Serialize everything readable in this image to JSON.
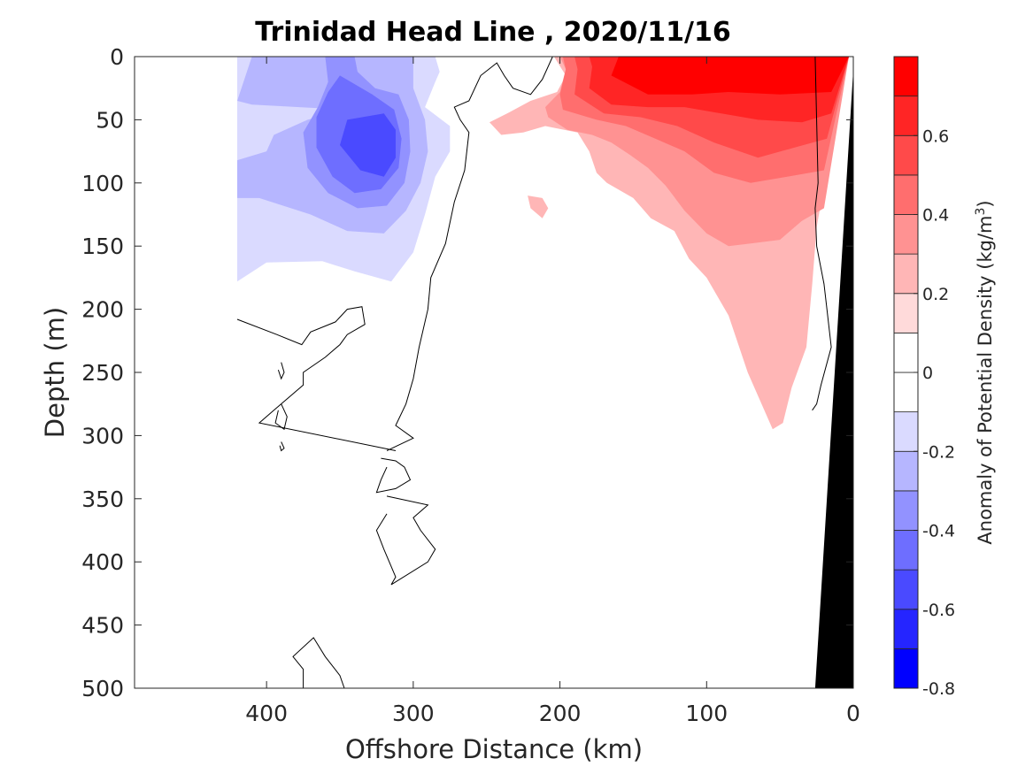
{
  "chart_data": {
    "type": "heatmap",
    "subtype": "filled-contour",
    "title": "Trinidad Head Line , 2020/11/16",
    "xlabel": "Offshore Distance (km)",
    "ylabel": "Depth (m)",
    "xlim": [
      490,
      0
    ],
    "xaxis_reversed": true,
    "ylim": [
      0,
      500
    ],
    "yaxis_reversed": true,
    "xticks": [
      400,
      300,
      200,
      100,
      0
    ],
    "yticks": [
      0,
      50,
      100,
      150,
      200,
      250,
      300,
      350,
      400,
      450,
      500
    ],
    "colorbar": {
      "label": "Anomaly of Potential Density (kg/m³)",
      "label_main": "Anomaly of Potential Density (kg/m",
      "label_sup": "3",
      "label_close": ")",
      "range": [
        -0.8,
        0.8
      ],
      "ticks": [
        -0.8,
        -0.6,
        -0.4,
        -0.2,
        0,
        0.2,
        0.4,
        0.6
      ],
      "tick_labels": [
        "-0.8",
        "-0.6",
        "-0.4",
        "-0.2",
        "0",
        "0.2",
        "0.4",
        "0.6"
      ],
      "levels": [
        {
          "lo": -0.8,
          "hi": -0.7,
          "color": "#0000ff"
        },
        {
          "lo": -0.7,
          "hi": -0.6,
          "color": "#2525ff"
        },
        {
          "lo": -0.6,
          "hi": -0.5,
          "color": "#4a4aff"
        },
        {
          "lo": -0.5,
          "hi": -0.4,
          "color": "#6e6eff"
        },
        {
          "lo": -0.4,
          "hi": -0.3,
          "color": "#9292ff"
        },
        {
          "lo": -0.3,
          "hi": -0.2,
          "color": "#b6b6ff"
        },
        {
          "lo": -0.2,
          "hi": -0.1,
          "color": "#dadaff"
        },
        {
          "lo": -0.1,
          "hi": 0.0,
          "color": "#ffffff"
        },
        {
          "lo": 0.0,
          "hi": 0.1,
          "color": "#ffffff"
        },
        {
          "lo": 0.1,
          "hi": 0.2,
          "color": "#ffdada"
        },
        {
          "lo": 0.2,
          "hi": 0.3,
          "color": "#ffb6b6"
        },
        {
          "lo": 0.3,
          "hi": 0.4,
          "color": "#ff9292"
        },
        {
          "lo": 0.4,
          "hi": 0.5,
          "color": "#ff6e6e"
        },
        {
          "lo": 0.5,
          "hi": 0.6,
          "color": "#ff4a4a"
        },
        {
          "lo": 0.6,
          "hi": 0.7,
          "color": "#ff2525"
        },
        {
          "lo": 0.7,
          "hi": 0.8,
          "color": "#ff0000"
        }
      ]
    },
    "regions": [
      {
        "level": -0.2,
        "points": [
          [
            420,
            0
          ],
          [
            285,
            0
          ],
          [
            282,
            12
          ],
          [
            285,
            20
          ],
          [
            292,
            40
          ],
          [
            275,
            55
          ],
          [
            275,
            75
          ],
          [
            285,
            95
          ],
          [
            292,
            125
          ],
          [
            300,
            155
          ],
          [
            315,
            178
          ],
          [
            340,
            170
          ],
          [
            362,
            162
          ],
          [
            400,
            163
          ],
          [
            420,
            178
          ]
        ]
      },
      {
        "level": -0.3,
        "points": [
          [
            410,
            0
          ],
          [
            300,
            0
          ],
          [
            300,
            25
          ],
          [
            292,
            50
          ],
          [
            290,
            75
          ],
          [
            295,
            100
          ],
          [
            305,
            122
          ],
          [
            320,
            140
          ],
          [
            345,
            138
          ],
          [
            370,
            125
          ],
          [
            405,
            112
          ],
          [
            420,
            112
          ],
          [
            420,
            82
          ],
          [
            400,
            75
          ],
          [
            395,
            62
          ],
          [
            372,
            50
          ],
          [
            345,
            42
          ],
          [
            410,
            38
          ],
          [
            420,
            35
          ]
        ]
      },
      {
        "level": -0.4,
        "points": [
          [
            360,
            0
          ],
          [
            340,
            0
          ],
          [
            338,
            12
          ],
          [
            326,
            25
          ],
          [
            310,
            30
          ],
          [
            303,
            50
          ],
          [
            302,
            75
          ],
          [
            306,
            100
          ],
          [
            318,
            118
          ],
          [
            338,
            120
          ],
          [
            358,
            108
          ],
          [
            372,
            88
          ],
          [
            375,
            60
          ],
          [
            365,
            40
          ],
          [
            358,
            20
          ]
        ]
      },
      {
        "level": -0.5,
        "points": [
          [
            350,
            15
          ],
          [
            328,
            30
          ],
          [
            313,
            42
          ],
          [
            308,
            65
          ],
          [
            310,
            88
          ],
          [
            322,
            105
          ],
          [
            340,
            108
          ],
          [
            355,
            95
          ],
          [
            366,
            72
          ],
          [
            366,
            48
          ],
          [
            358,
            28
          ]
        ]
      },
      {
        "level": -0.6,
        "points": [
          [
            345,
            50
          ],
          [
            320,
            45
          ],
          [
            312,
            58
          ],
          [
            312,
            80
          ],
          [
            320,
            95
          ],
          [
            336,
            90
          ],
          [
            350,
            70
          ]
        ]
      },
      {
        "level": 0.2,
        "points": [
          [
            248,
            52
          ],
          [
            236,
            45
          ],
          [
            220,
            35
          ],
          [
            202,
            28
          ],
          [
            196,
            15
          ],
          [
            204,
            0
          ],
          [
            3,
            0
          ],
          [
            15,
            70
          ],
          [
            25,
            135
          ],
          [
            28,
            180
          ],
          [
            32,
            230
          ],
          [
            42,
            262
          ],
          [
            48,
            290
          ],
          [
            55,
            295
          ],
          [
            72,
            250
          ],
          [
            85,
            205
          ],
          [
            100,
            175
          ],
          [
            112,
            160
          ],
          [
            122,
            138
          ],
          [
            138,
            128
          ],
          [
            150,
            112
          ],
          [
            168,
            100
          ],
          [
            175,
            92
          ],
          [
            180,
            75
          ],
          [
            188,
            60
          ],
          [
            210,
            55
          ],
          [
            225,
            60
          ],
          [
            240,
            62
          ]
        ]
      },
      {
        "level": 0.2,
        "points": [
          [
            222,
            110
          ],
          [
            212,
            112
          ],
          [
            208,
            120
          ],
          [
            212,
            128
          ],
          [
            220,
            120
          ]
        ]
      },
      {
        "level": 0.3,
        "points": [
          [
            210,
            40
          ],
          [
            200,
            28
          ],
          [
            196,
            10
          ],
          [
            200,
            0
          ],
          [
            3,
            0
          ],
          [
            20,
            120
          ],
          [
            35,
            130
          ],
          [
            50,
            145
          ],
          [
            70,
            148
          ],
          [
            85,
            150
          ],
          [
            100,
            140
          ],
          [
            115,
            122
          ],
          [
            128,
            102
          ],
          [
            140,
            88
          ],
          [
            152,
            78
          ],
          [
            165,
            68
          ],
          [
            178,
            62
          ],
          [
            195,
            58
          ],
          [
            208,
            48
          ]
        ]
      },
      {
        "level": 0.4,
        "points": [
          [
            200,
            30
          ],
          [
            196,
            10
          ],
          [
            198,
            0
          ],
          [
            3,
            0
          ],
          [
            20,
            90
          ],
          [
            45,
            95
          ],
          [
            70,
            100
          ],
          [
            95,
            92
          ],
          [
            115,
            75
          ],
          [
            135,
            65
          ],
          [
            155,
            55
          ],
          [
            175,
            50
          ],
          [
            198,
            42
          ]
        ]
      },
      {
        "level": 0.5,
        "points": [
          [
            190,
            30
          ],
          [
            188,
            10
          ],
          [
            190,
            0
          ],
          [
            3,
            0
          ],
          [
            18,
            65
          ],
          [
            40,
            72
          ],
          [
            65,
            80
          ],
          [
            95,
            68
          ],
          [
            120,
            55
          ],
          [
            145,
            48
          ],
          [
            170,
            45
          ]
        ]
      },
      {
        "level": 0.6,
        "points": [
          [
            180,
            25
          ],
          [
            178,
            8
          ],
          [
            180,
            0
          ],
          [
            3,
            0
          ],
          [
            15,
            45
          ],
          [
            35,
            52
          ],
          [
            65,
            50
          ],
          [
            90,
            45
          ],
          [
            115,
            40
          ],
          [
            140,
            40
          ],
          [
            165,
            38
          ]
        ]
      },
      {
        "level": 0.7,
        "points": [
          [
            165,
            15
          ],
          [
            160,
            0
          ],
          [
            3,
            0
          ],
          [
            15,
            28
          ],
          [
            50,
            30
          ],
          [
            85,
            28
          ],
          [
            110,
            30
          ],
          [
            140,
            30
          ]
        ]
      }
    ],
    "zero_contours": [
      {
        "points": [
          [
            205,
            0
          ],
          [
            212,
            18
          ],
          [
            220,
            30
          ],
          [
            232,
            25
          ],
          [
            238,
            15
          ],
          [
            243,
            5
          ],
          [
            254,
            15
          ],
          [
            262,
            35
          ],
          [
            272,
            40
          ],
          [
            268,
            50
          ],
          [
            262,
            60
          ],
          [
            265,
            90
          ],
          [
            272,
            115
          ],
          [
            278,
            148
          ],
          [
            288,
            175
          ],
          [
            290,
            200
          ],
          [
            296,
            230
          ],
          [
            300,
            255
          ],
          [
            305,
            275
          ],
          [
            312,
            292
          ],
          [
            300,
            302
          ],
          [
            318,
            312
          ]
        ]
      },
      {
        "points": [
          [
            420,
            208
          ],
          [
            393,
            220
          ],
          [
            376,
            228
          ],
          [
            370,
            218
          ],
          [
            353,
            210
          ],
          [
            345,
            200
          ],
          [
            335,
            198
          ],
          [
            333,
            212
          ],
          [
            345,
            220
          ],
          [
            350,
            228
          ],
          [
            360,
            238
          ],
          [
            375,
            250
          ],
          [
            375,
            260
          ],
          [
            395,
            280
          ],
          [
            405,
            290
          ],
          [
            312,
            312
          ]
        ]
      },
      {
        "points": [
          [
            322,
            318
          ],
          [
            312,
            320
          ],
          [
            306,
            325
          ],
          [
            302,
            335
          ],
          [
            312,
            342
          ],
          [
            325,
            345
          ],
          [
            322,
            335
          ],
          [
            318,
            325
          ]
        ]
      },
      {
        "points": [
          [
            318,
            348
          ],
          [
            290,
            355
          ],
          [
            300,
            365
          ],
          [
            295,
            375
          ],
          [
            285,
            390
          ],
          [
            290,
            400
          ],
          [
            315,
            418
          ],
          [
            312,
            412
          ],
          [
            320,
            390
          ],
          [
            325,
            375
          ],
          [
            318,
            362
          ]
        ]
      },
      {
        "points": [
          [
            390,
            242
          ],
          [
            388,
            250
          ],
          [
            390,
            255
          ],
          [
            392,
            248
          ]
        ]
      },
      {
        "points": [
          [
            390,
            275
          ],
          [
            386,
            285
          ],
          [
            388,
            295
          ],
          [
            394,
            290
          ],
          [
            392,
            280
          ]
        ]
      },
      {
        "points": [
          [
            390,
            305
          ],
          [
            388,
            310
          ],
          [
            390,
            312
          ],
          [
            391,
            308
          ]
        ]
      },
      {
        "points": [
          [
            375,
            500
          ],
          [
            375,
            485
          ],
          [
            382,
            475
          ],
          [
            368,
            460
          ],
          [
            360,
            475
          ],
          [
            350,
            490
          ],
          [
            347,
            500
          ]
        ]
      },
      {
        "points": [
          [
            26,
            0
          ],
          [
            24,
            100
          ],
          [
            26,
            120
          ],
          [
            25,
            150
          ],
          [
            20,
            180
          ],
          [
            18,
            200
          ],
          [
            15,
            230
          ],
          [
            22,
            260
          ],
          [
            25,
            275
          ],
          [
            28,
            280
          ]
        ]
      }
    ],
    "bathymetry": {
      "color": "#000000",
      "points": [
        [
          0,
          0
        ],
        [
          0,
          500
        ],
        [
          26,
          500
        ],
        [
          10,
          200
        ],
        [
          0,
          10
        ]
      ]
    }
  }
}
